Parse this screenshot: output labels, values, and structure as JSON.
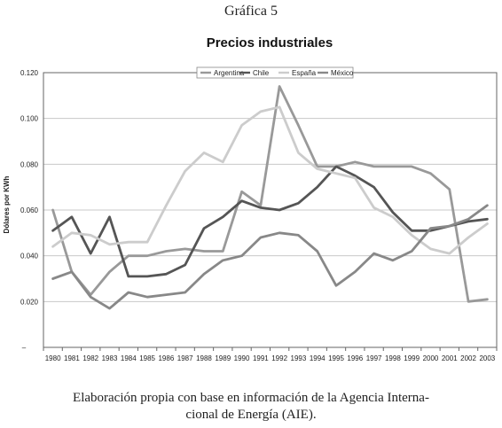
{
  "figure_label": "Gráfica 5",
  "caption": {
    "line1": "Elaboración propia con base en información de la Agencia Interna-",
    "line2": "cional de Energía (AIE)."
  },
  "chart_data": {
    "type": "line",
    "title": "Precios industriales",
    "xlabel": "",
    "ylabel": "Dólares por KWh",
    "x": [
      "1980",
      "1981",
      "1982",
      "1983",
      "1984",
      "1985",
      "1986",
      "1987",
      "1988",
      "1989",
      "1990",
      "1991",
      "1992",
      "1993",
      "1994",
      "1995",
      "1996",
      "1997",
      "1998",
      "1999",
      "2000",
      "2001",
      "2002",
      "2003"
    ],
    "y_ticks": [
      0.02,
      0.04,
      0.06,
      0.08,
      0.1,
      0.12
    ],
    "y_tick_labels": [
      "0.020",
      "0.040",
      "0.060",
      "0.080",
      "0.100",
      "0.120"
    ],
    "y_zero_label": "–",
    "ylim": [
      0,
      0.12
    ],
    "grid": true,
    "legend_position": "top-center",
    "series": [
      {
        "name": "Argentina",
        "color": "#999999",
        "values": [
          0.06,
          0.033,
          0.023,
          0.033,
          0.04,
          0.04,
          0.042,
          0.043,
          0.042,
          0.042,
          0.068,
          0.062,
          0.114,
          0.097,
          0.079,
          0.079,
          0.081,
          0.079,
          0.079,
          0.079,
          0.076,
          0.069,
          0.02,
          0.021
        ]
      },
      {
        "name": "Chile",
        "color": "#555555",
        "values": [
          0.051,
          0.057,
          0.041,
          0.057,
          0.031,
          0.031,
          0.032,
          0.036,
          0.052,
          0.057,
          0.064,
          0.061,
          0.06,
          0.063,
          0.07,
          0.079,
          0.075,
          0.07,
          0.059,
          0.051,
          0.051,
          0.053,
          0.055,
          0.056
        ]
      },
      {
        "name": "España",
        "color": "#cccccc",
        "values": [
          0.044,
          0.05,
          0.049,
          0.045,
          0.046,
          0.046,
          0.062,
          0.077,
          0.085,
          0.081,
          0.097,
          0.103,
          0.105,
          0.085,
          0.078,
          0.076,
          0.074,
          0.061,
          0.057,
          0.049,
          0.043,
          0.041,
          0.048,
          0.054
        ]
      },
      {
        "name": "México",
        "color": "#888888",
        "values": [
          0.03,
          0.033,
          0.022,
          0.017,
          0.024,
          0.022,
          0.023,
          0.024,
          0.032,
          0.038,
          0.04,
          0.048,
          0.05,
          0.049,
          0.042,
          0.027,
          0.033,
          0.041,
          0.038,
          0.042,
          0.052,
          0.053,
          0.056,
          0.062
        ]
      }
    ]
  }
}
